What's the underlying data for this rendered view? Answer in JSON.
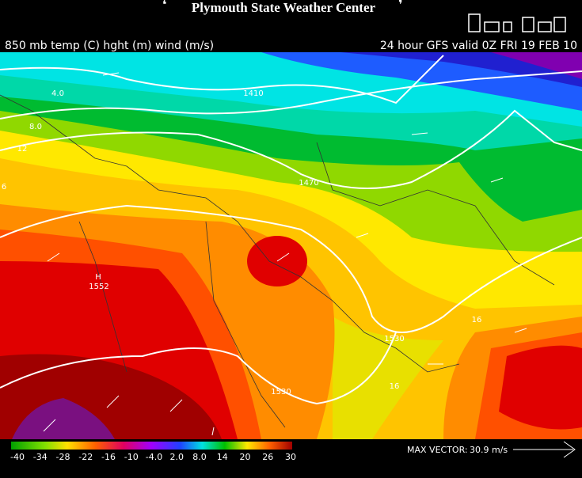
{
  "header": {
    "title": "Plymouth State Weather Center",
    "left_caption": "850 mb temp (C) hght (m) wind (m/s)",
    "right_caption": "24 hour GFS valid 0Z FRI 19 FEB 10"
  },
  "map": {
    "contour_labels": [
      "4.0",
      "8.0",
      "12",
      "6",
      "1410",
      "1470",
      "H",
      "1552",
      "1530",
      "1530",
      "16",
      "16"
    ]
  },
  "colorbar": {
    "labels": [
      "-40",
      "-34",
      "-28",
      "-22",
      "-16",
      "-10",
      "-4.0",
      "2.0",
      "8.0",
      "14",
      "20",
      "26",
      "30"
    ]
  },
  "footer": {
    "max_vector": "MAX VECTOR:",
    "max_vector_value": "30.9 m/s"
  }
}
